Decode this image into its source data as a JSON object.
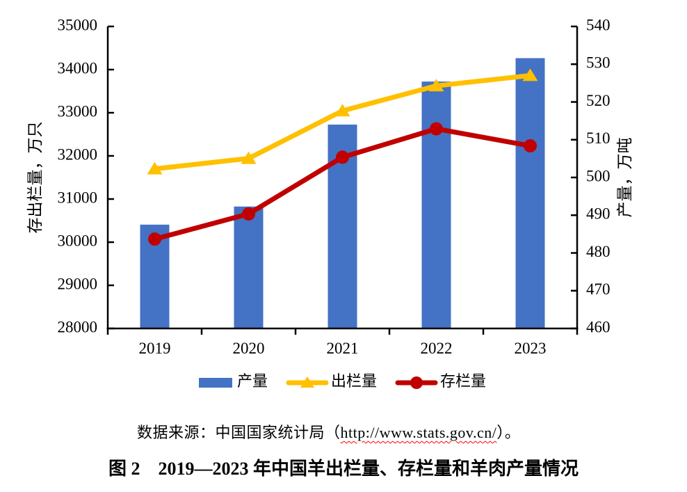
{
  "chart_data": {
    "type": "combo-bar-line",
    "categories": [
      "2019",
      "2020",
      "2021",
      "2022",
      "2023"
    ],
    "series": [
      {
        "name": "产量",
        "type": "bar",
        "axis": "right",
        "color": "#4472C4",
        "values": [
          487.5,
          492.3,
          514.0,
          525.4,
          531.6
        ]
      },
      {
        "name": "出栏量",
        "type": "line",
        "axis": "left",
        "color": "#FFC000",
        "marker": "triangle",
        "values": [
          31699,
          31941,
          33045,
          33624,
          33864
        ]
      },
      {
        "name": "存栏量",
        "type": "line",
        "axis": "left",
        "color": "#C00000",
        "marker": "circle",
        "values": [
          30072,
          30655,
          31969,
          32627,
          32233
        ]
      }
    ],
    "left_axis": {
      "label": "存出栏量，万只",
      "min": 28000,
      "max": 35000,
      "step": 1000,
      "ticks": [
        "28000",
        "29000",
        "30000",
        "31000",
        "32000",
        "33000",
        "34000",
        "35000"
      ]
    },
    "right_axis": {
      "label": "产量，万吨",
      "min": 460,
      "max": 540,
      "step": 10,
      "ticks": [
        "460",
        "470",
        "480",
        "490",
        "500",
        "510",
        "520",
        "530",
        "540"
      ]
    },
    "grid": false,
    "legend_position": "bottom",
    "legend": [
      "产量",
      "出栏量",
      "存栏量"
    ]
  },
  "colors": {
    "bar_blue": "#4472C4",
    "line_yellow": "#FFC000",
    "line_red": "#C00000",
    "axis_black": "#000000",
    "squiggle_red": "#ff0000"
  },
  "source_note": {
    "prefix": "数据来源：中国国家统计局（",
    "url": "http://www.stats.gov.cn/",
    "suffix": "）。"
  },
  "caption": {
    "figure_label": "图 2",
    "title": "2019—2023 年中国羊出栏量、存栏量和羊肉产量情况"
  }
}
